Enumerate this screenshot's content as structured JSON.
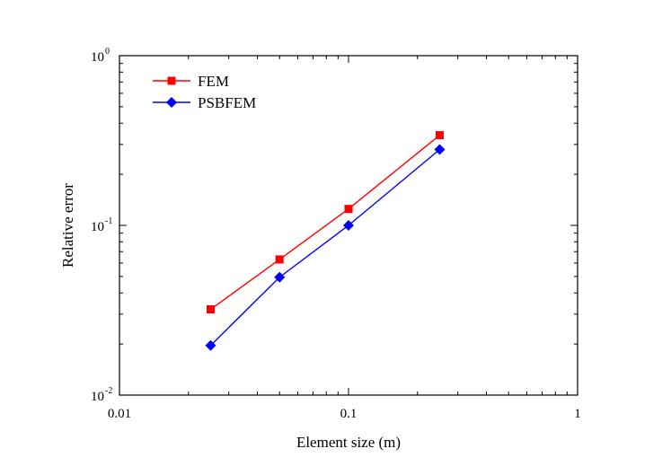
{
  "chart_data": {
    "type": "line",
    "title": "",
    "xlabel": "Element size (m)",
    "ylabel": "Relative error",
    "xscale": "log",
    "yscale": "log",
    "xlim": [
      0.01,
      1
    ],
    "ylim": [
      0.01,
      1
    ],
    "x_ticks": [
      {
        "value": 0.01,
        "label": "0.01"
      },
      {
        "value": 0.1,
        "label": "0.1"
      },
      {
        "value": 1,
        "label": "1"
      }
    ],
    "y_ticks": [
      {
        "value": 0.01,
        "base": "10",
        "exp": "-2"
      },
      {
        "value": 0.1,
        "base": "10",
        "exp": "-1"
      },
      {
        "value": 1,
        "base": "10",
        "exp": "0"
      }
    ],
    "grid": false,
    "legend_position": "top-left",
    "x": [
      0.025,
      0.05,
      0.1,
      0.25
    ],
    "series": [
      {
        "name": "FEM",
        "values": [
          0.032,
          0.063,
          0.125,
          0.34
        ],
        "color": "#ff0000",
        "marker": "square"
      },
      {
        "name": "PSBFEM",
        "values": [
          0.0196,
          0.0495,
          0.1,
          0.28
        ],
        "color": "#0000ff",
        "marker": "diamond"
      }
    ]
  }
}
